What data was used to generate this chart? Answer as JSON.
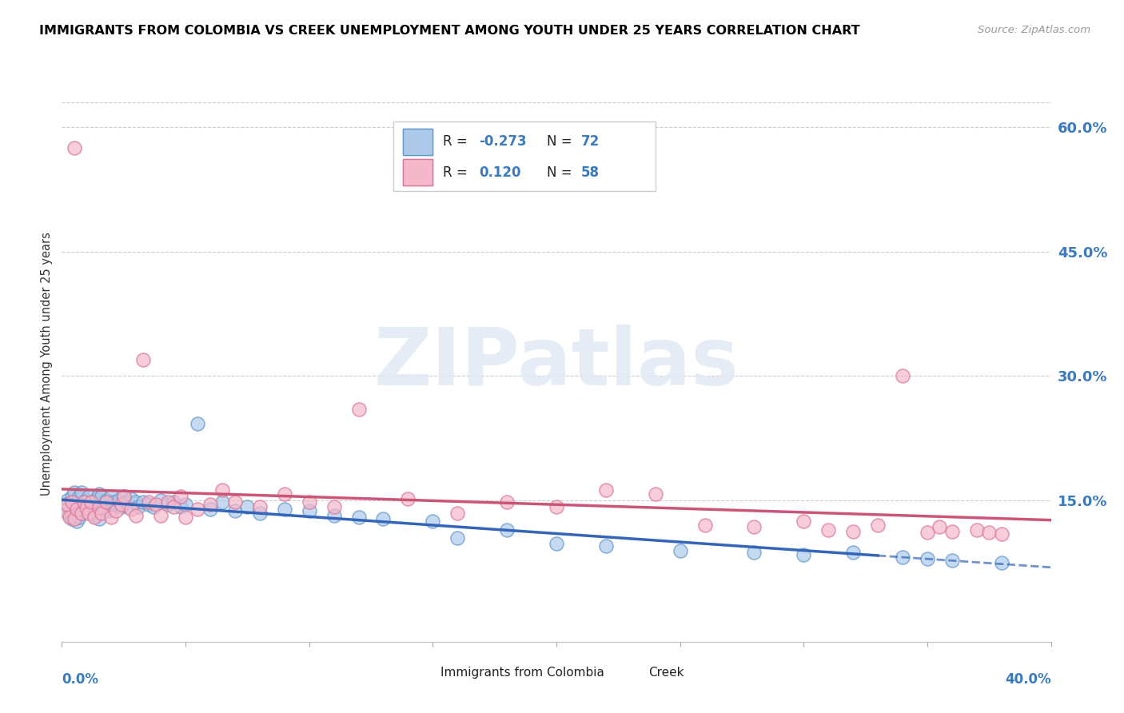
{
  "title": "IMMIGRANTS FROM COLOMBIA VS CREEK UNEMPLOYMENT AMONG YOUTH UNDER 25 YEARS CORRELATION CHART",
  "source": "Source: ZipAtlas.com",
  "series1_name": "Immigrants from Colombia",
  "series1_color": "#adc9ea",
  "series1_edge_color": "#6699cc",
  "series1_line_color": "#3366bb",
  "series1_R": -0.273,
  "series1_N": 72,
  "series2_name": "Creek",
  "series2_color": "#f5b8cb",
  "series2_edge_color": "#dd7799",
  "series2_line_color": "#cc5577",
  "series2_R": 0.12,
  "series2_N": 58,
  "xmin": 0.0,
  "xmax": 0.4,
  "ymin": -0.02,
  "ymax": 0.65,
  "ytick_vals": [
    0.0,
    0.15,
    0.3,
    0.45,
    0.6
  ],
  "ytick_labels": [
    "",
    "15.0%",
    "30.0%",
    "45.0%",
    "60.0%"
  ],
  "watermark_text": "ZIPatlas",
  "blue_x": [
    0.001,
    0.002,
    0.002,
    0.003,
    0.003,
    0.004,
    0.004,
    0.005,
    0.005,
    0.006,
    0.006,
    0.007,
    0.007,
    0.008,
    0.008,
    0.009,
    0.01,
    0.01,
    0.011,
    0.012,
    0.013,
    0.013,
    0.014,
    0.015,
    0.015,
    0.016,
    0.017,
    0.018,
    0.019,
    0.02,
    0.021,
    0.022,
    0.023,
    0.024,
    0.025,
    0.026,
    0.027,
    0.028,
    0.03,
    0.031,
    0.033,
    0.035,
    0.037,
    0.04,
    0.043,
    0.045,
    0.048,
    0.05,
    0.055,
    0.06,
    0.065,
    0.07,
    0.075,
    0.08,
    0.09,
    0.1,
    0.11,
    0.12,
    0.13,
    0.15,
    0.16,
    0.18,
    0.2,
    0.22,
    0.25,
    0.28,
    0.3,
    0.32,
    0.34,
    0.35,
    0.36,
    0.38
  ],
  "blue_y": [
    0.145,
    0.15,
    0.138,
    0.142,
    0.132,
    0.155,
    0.128,
    0.16,
    0.135,
    0.148,
    0.125,
    0.155,
    0.13,
    0.16,
    0.135,
    0.142,
    0.15,
    0.138,
    0.155,
    0.145,
    0.148,
    0.132,
    0.152,
    0.158,
    0.128,
    0.155,
    0.143,
    0.15,
    0.138,
    0.155,
    0.148,
    0.145,
    0.15,
    0.143,
    0.155,
    0.148,
    0.143,
    0.152,
    0.148,
    0.143,
    0.148,
    0.145,
    0.143,
    0.15,
    0.145,
    0.148,
    0.143,
    0.145,
    0.243,
    0.14,
    0.148,
    0.138,
    0.143,
    0.135,
    0.14,
    0.138,
    0.132,
    0.13,
    0.128,
    0.125,
    0.105,
    0.115,
    0.098,
    0.095,
    0.09,
    0.088,
    0.085,
    0.088,
    0.082,
    0.08,
    0.078,
    0.075
  ],
  "pink_x": [
    0.001,
    0.002,
    0.003,
    0.004,
    0.005,
    0.005,
    0.006,
    0.008,
    0.009,
    0.01,
    0.011,
    0.012,
    0.013,
    0.015,
    0.016,
    0.018,
    0.02,
    0.022,
    0.024,
    0.025,
    0.028,
    0.03,
    0.033,
    0.035,
    0.038,
    0.04,
    0.043,
    0.045,
    0.048,
    0.05,
    0.055,
    0.06,
    0.065,
    0.07,
    0.08,
    0.09,
    0.1,
    0.11,
    0.12,
    0.14,
    0.16,
    0.18,
    0.2,
    0.22,
    0.24,
    0.26,
    0.28,
    0.3,
    0.31,
    0.32,
    0.33,
    0.34,
    0.35,
    0.355,
    0.36,
    0.37,
    0.375,
    0.38
  ],
  "pink_y": [
    0.138,
    0.145,
    0.13,
    0.148,
    0.575,
    0.128,
    0.14,
    0.135,
    0.148,
    0.142,
    0.135,
    0.148,
    0.13,
    0.142,
    0.135,
    0.148,
    0.13,
    0.138,
    0.145,
    0.155,
    0.14,
    0.132,
    0.32,
    0.148,
    0.145,
    0.132,
    0.148,
    0.143,
    0.155,
    0.13,
    0.14,
    0.145,
    0.163,
    0.148,
    0.143,
    0.158,
    0.148,
    0.143,
    0.26,
    0.152,
    0.135,
    0.148,
    0.143,
    0.163,
    0.158,
    0.12,
    0.118,
    0.125,
    0.115,
    0.113,
    0.12,
    0.3,
    0.112,
    0.118,
    0.113,
    0.115,
    0.112,
    0.11
  ]
}
